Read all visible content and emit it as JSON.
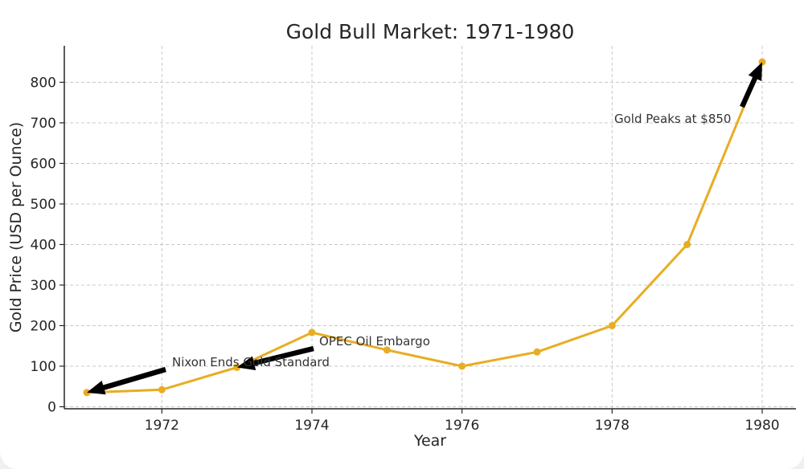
{
  "chart_data": {
    "type": "line",
    "title": "Gold Bull Market: 1971-1980",
    "xlabel": "Year",
    "ylabel": "Gold Price (USD per Ounce)",
    "x": [
      1971,
      1972,
      1973,
      1974,
      1975,
      1976,
      1977,
      1978,
      1979,
      1980
    ],
    "series": [
      {
        "name": "",
        "values": [
          35,
          42,
          97,
          183,
          140,
          100,
          135,
          200,
          400,
          850
        ],
        "color": "#e8ad22"
      }
    ],
    "xlim": [
      1970.7,
      1980.45
    ],
    "ylim": [
      -5,
      890
    ],
    "xticks": [
      1972,
      1974,
      1976,
      1978,
      1980
    ],
    "xtick_labels": [
      "1972",
      "1974",
      "1976",
      "1978",
      "1980"
    ],
    "yticks": [
      0,
      100,
      200,
      300,
      400,
      500,
      600,
      700,
      800
    ],
    "ytick_labels": [
      "0",
      "100",
      "200",
      "300",
      "400",
      "500",
      "600",
      "700",
      "800"
    ],
    "grid": true,
    "annotations": [
      {
        "text": "Nixon Ends Gold Standard",
        "point": [
          1971,
          35
        ]
      },
      {
        "text": "OPEC Oil Embargo",
        "point": [
          1973,
          97
        ]
      },
      {
        "text": "Gold Peaks at $850",
        "point": [
          1980,
          850
        ]
      }
    ],
    "colors": {
      "line": "#e8ad22",
      "grid": "#c8c8c8",
      "axis": "#262626",
      "arrow": "#000000"
    }
  }
}
